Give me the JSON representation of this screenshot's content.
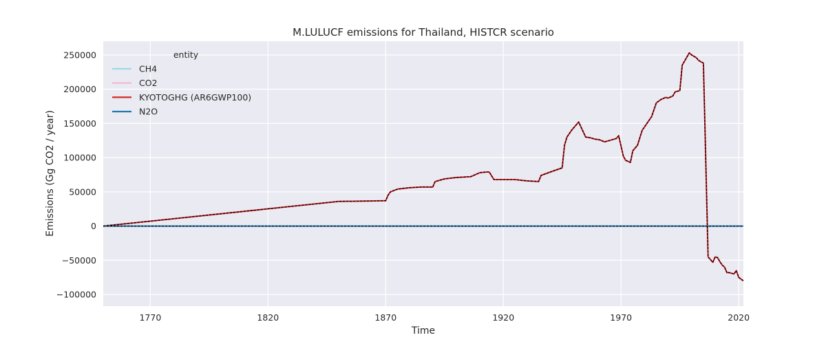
{
  "chart_data": {
    "type": "line",
    "title": "M.LULUCF emissions for Thailand, HISTCR scenario",
    "xlabel": "Time",
    "ylabel": "Emissions (Gg CO2 / year)",
    "xlim": [
      1750,
      2022
    ],
    "ylim": [
      -117000,
      270000
    ],
    "xticks": [
      1770,
      1820,
      1870,
      1920,
      1970,
      2020
    ],
    "xtick_labels": [
      "1770",
      "1820",
      "1870",
      "1920",
      "1970",
      "2020"
    ],
    "yticks": [
      -100000,
      -50000,
      0,
      50000,
      100000,
      150000,
      200000,
      250000
    ],
    "ytick_labels": [
      "−100000",
      "−50000",
      "0",
      "50000",
      "100000",
      "150000",
      "200000",
      "250000"
    ],
    "grid": true,
    "legend_title": "entity",
    "legend_position": "top-left",
    "colors": {
      "background": "#eaeaf2",
      "grid": "#ffffff",
      "CH4": "#9edae5",
      "CO2": "#f7b6d2",
      "KYOTOGHG (AR6GWP100)": "#d62728",
      "N2O": "#1f77b4",
      "overlay": "#000000"
    },
    "series": [
      {
        "name": "CH4",
        "x": [
          1750,
          2022
        ],
        "values": [
          0,
          0
        ]
      },
      {
        "name": "CO2",
        "x": [
          1750,
          1850,
          1870,
          1871,
          1872,
          1875,
          1880,
          1885,
          1890,
          1891,
          1895,
          1900,
          1905,
          1906,
          1910,
          1913,
          1914,
          1916,
          1920,
          1925,
          1930,
          1935,
          1936,
          1940,
          1945,
          1946,
          1947,
          1949,
          1951,
          1952,
          1955,
          1957,
          1959,
          1961,
          1963,
          1965,
          1968,
          1969,
          1971,
          1972,
          1974,
          1975,
          1977,
          1979,
          1980,
          1983,
          1985,
          1987,
          1989,
          1990,
          1992,
          1993,
          1995,
          1996,
          1999,
          2000,
          2001,
          2002,
          2003,
          2005,
          2007,
          2009,
          2010,
          2011,
          2012,
          2013,
          2014,
          2015,
          2016,
          2018,
          2019,
          2020,
          2022
        ],
        "values": [
          0,
          36000,
          37000,
          45000,
          50000,
          54000,
          56000,
          57000,
          57000,
          65000,
          69000,
          71000,
          72000,
          72000,
          78000,
          79000,
          79000,
          68000,
          68000,
          68000,
          66000,
          65000,
          74000,
          79000,
          85000,
          118000,
          130000,
          140000,
          148000,
          152000,
          130000,
          129000,
          127000,
          126000,
          123000,
          125000,
          128000,
          132000,
          102000,
          96000,
          93000,
          110000,
          118000,
          140000,
          145000,
          160000,
          180000,
          185000,
          188000,
          187000,
          190000,
          196000,
          198000,
          235000,
          253000,
          250000,
          248000,
          246000,
          242000,
          238000,
          -45000,
          -53000,
          -45000,
          -46000,
          -52000,
          -57000,
          -60000,
          -68000,
          -68000,
          -70000,
          -65000,
          -75000,
          -80000
        ]
      },
      {
        "name": "KYOTOGHG (AR6GWP100)",
        "x": [
          1750,
          1850,
          1870,
          1871,
          1872,
          1875,
          1880,
          1885,
          1890,
          1891,
          1895,
          1900,
          1905,
          1906,
          1910,
          1913,
          1914,
          1916,
          1920,
          1925,
          1930,
          1935,
          1936,
          1940,
          1945,
          1946,
          1947,
          1949,
          1951,
          1952,
          1955,
          1957,
          1959,
          1961,
          1963,
          1965,
          1968,
          1969,
          1971,
          1972,
          1974,
          1975,
          1977,
          1979,
          1980,
          1983,
          1985,
          1987,
          1989,
          1990,
          1992,
          1993,
          1995,
          1996,
          1999,
          2000,
          2001,
          2002,
          2003,
          2005,
          2007,
          2009,
          2010,
          2011,
          2012,
          2013,
          2014,
          2015,
          2016,
          2018,
          2019,
          2020,
          2022
        ],
        "values": [
          0,
          36000,
          37000,
          45000,
          50000,
          54000,
          56000,
          57000,
          57000,
          65000,
          69000,
          71000,
          72000,
          72000,
          78000,
          79000,
          79000,
          68000,
          68000,
          68000,
          66000,
          65000,
          74000,
          79000,
          85000,
          118000,
          130000,
          140000,
          148000,
          152000,
          130000,
          129000,
          127000,
          126000,
          123000,
          125000,
          128000,
          132000,
          102000,
          96000,
          93000,
          110000,
          118000,
          140000,
          145000,
          160000,
          180000,
          185000,
          188000,
          187000,
          190000,
          196000,
          198000,
          235000,
          253000,
          250000,
          248000,
          246000,
          242000,
          238000,
          -45000,
          -53000,
          -45000,
          -46000,
          -52000,
          -57000,
          -60000,
          -68000,
          -68000,
          -70000,
          -65000,
          -75000,
          -80000
        ]
      },
      {
        "name": "N2O",
        "x": [
          1750,
          2022
        ],
        "values": [
          0,
          0
        ]
      }
    ]
  }
}
